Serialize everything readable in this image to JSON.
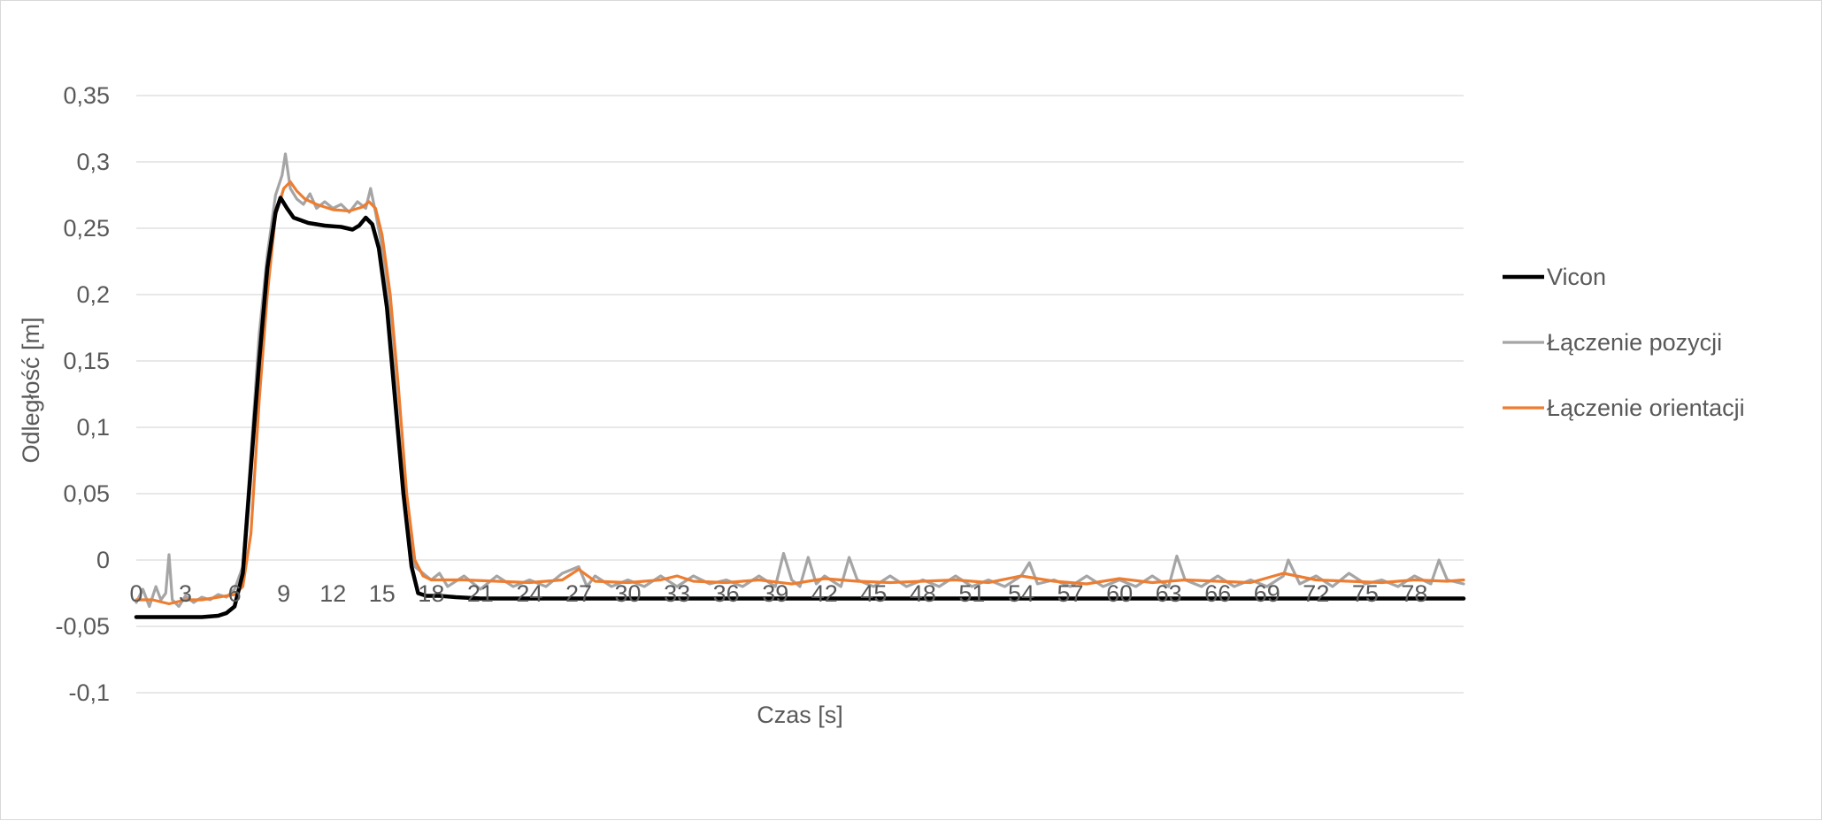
{
  "chart_data": {
    "type": "line",
    "title": "",
    "xlabel": "Czas [s]",
    "ylabel": "Odległość [m]",
    "xlim": [
      0,
      81
    ],
    "ylim": [
      -0.1,
      0.35
    ],
    "x_ticks": [
      "0",
      "3",
      "6",
      "9",
      "12",
      "15",
      "18",
      "21",
      "24",
      "27",
      "30",
      "33",
      "36",
      "39",
      "42",
      "45",
      "48",
      "51",
      "54",
      "57",
      "60",
      "63",
      "66",
      "69",
      "72",
      "75",
      "78"
    ],
    "y_ticks": [
      "-0,1",
      "-0,05",
      "0",
      "0,05",
      "0,1",
      "0,15",
      "0,2",
      "0,25",
      "0,3",
      "0,35"
    ],
    "grid": true,
    "legend_position": "right",
    "series": [
      {
        "name": "Vicon",
        "color": "#000000",
        "points": [
          [
            0,
            -0.043
          ],
          [
            1,
            -0.043
          ],
          [
            2,
            -0.043
          ],
          [
            3,
            -0.043
          ],
          [
            4,
            -0.043
          ],
          [
            5,
            -0.042
          ],
          [
            5.5,
            -0.04
          ],
          [
            6,
            -0.035
          ],
          [
            6.5,
            -0.01
          ],
          [
            7,
            0.07
          ],
          [
            7.5,
            0.15
          ],
          [
            8,
            0.22
          ],
          [
            8.5,
            0.262
          ],
          [
            8.8,
            0.273
          ],
          [
            9.2,
            0.265
          ],
          [
            9.6,
            0.258
          ],
          [
            10.5,
            0.254
          ],
          [
            11.5,
            0.252
          ],
          [
            12.5,
            0.251
          ],
          [
            13.2,
            0.249
          ],
          [
            13.6,
            0.252
          ],
          [
            14,
            0.258
          ],
          [
            14.4,
            0.253
          ],
          [
            14.8,
            0.235
          ],
          [
            15.3,
            0.19
          ],
          [
            15.8,
            0.12
          ],
          [
            16.3,
            0.05
          ],
          [
            16.8,
            -0.005
          ],
          [
            17.2,
            -0.025
          ],
          [
            17.7,
            -0.027
          ],
          [
            18.5,
            -0.027
          ],
          [
            19.5,
            -0.028
          ],
          [
            21,
            -0.029
          ],
          [
            30,
            -0.029
          ],
          [
            40,
            -0.029
          ],
          [
            50,
            -0.029
          ],
          [
            60,
            -0.029
          ],
          [
            70,
            -0.029
          ],
          [
            81,
            -0.029
          ]
        ]
      },
      {
        "name": "Łączenie pozycji",
        "color": "#a5a5a5",
        "points": [
          [
            0,
            -0.032
          ],
          [
            0.4,
            -0.022
          ],
          [
            0.8,
            -0.035
          ],
          [
            1.2,
            -0.02
          ],
          [
            1.5,
            -0.03
          ],
          [
            1.8,
            -0.025
          ],
          [
            2,
            0.004
          ],
          [
            2.2,
            -0.03
          ],
          [
            2.6,
            -0.035
          ],
          [
            3,
            -0.027
          ],
          [
            3.5,
            -0.032
          ],
          [
            4,
            -0.028
          ],
          [
            4.5,
            -0.03
          ],
          [
            5,
            -0.026
          ],
          [
            5.5,
            -0.028
          ],
          [
            6,
            -0.022
          ],
          [
            6.5,
            -0.005
          ],
          [
            7,
            0.08
          ],
          [
            7.5,
            0.17
          ],
          [
            8,
            0.23
          ],
          [
            8.5,
            0.275
          ],
          [
            8.9,
            0.29
          ],
          [
            9.1,
            0.306
          ],
          [
            9.4,
            0.28
          ],
          [
            9.8,
            0.272
          ],
          [
            10.2,
            0.268
          ],
          [
            10.6,
            0.276
          ],
          [
            11,
            0.265
          ],
          [
            11.5,
            0.27
          ],
          [
            12,
            0.265
          ],
          [
            12.5,
            0.268
          ],
          [
            13,
            0.262
          ],
          [
            13.5,
            0.27
          ],
          [
            14,
            0.265
          ],
          [
            14.3,
            0.28
          ],
          [
            14.6,
            0.262
          ],
          [
            15,
            0.235
          ],
          [
            15.5,
            0.18
          ],
          [
            16,
            0.1
          ],
          [
            16.5,
            0.03
          ],
          [
            17,
            -0.005
          ],
          [
            17.5,
            -0.01
          ],
          [
            18,
            -0.015
          ],
          [
            18.5,
            -0.01
          ],
          [
            19,
            -0.02
          ],
          [
            20,
            -0.012
          ],
          [
            21,
            -0.022
          ],
          [
            22,
            -0.012
          ],
          [
            23,
            -0.02
          ],
          [
            24,
            -0.015
          ],
          [
            25,
            -0.02
          ],
          [
            26,
            -0.01
          ],
          [
            27,
            -0.005
          ],
          [
            27.5,
            -0.02
          ],
          [
            28,
            -0.012
          ],
          [
            29,
            -0.02
          ],
          [
            30,
            -0.015
          ],
          [
            31,
            -0.02
          ],
          [
            32,
            -0.012
          ],
          [
            33,
            -0.02
          ],
          [
            34,
            -0.012
          ],
          [
            35,
            -0.018
          ],
          [
            36,
            -0.015
          ],
          [
            37,
            -0.02
          ],
          [
            38,
            -0.012
          ],
          [
            39,
            -0.02
          ],
          [
            39.5,
            0.005
          ],
          [
            40,
            -0.015
          ],
          [
            40.5,
            -0.02
          ],
          [
            41,
            0.002
          ],
          [
            41.5,
            -0.018
          ],
          [
            42,
            -0.012
          ],
          [
            43,
            -0.02
          ],
          [
            43.5,
            0.002
          ],
          [
            44,
            -0.015
          ],
          [
            45,
            -0.02
          ],
          [
            46,
            -0.012
          ],
          [
            47,
            -0.02
          ],
          [
            48,
            -0.015
          ],
          [
            49,
            -0.02
          ],
          [
            50,
            -0.012
          ],
          [
            51,
            -0.02
          ],
          [
            52,
            -0.015
          ],
          [
            53,
            -0.02
          ],
          [
            54,
            -0.012
          ],
          [
            54.5,
            -0.002
          ],
          [
            55,
            -0.018
          ],
          [
            56,
            -0.015
          ],
          [
            57,
            -0.02
          ],
          [
            58,
            -0.012
          ],
          [
            59,
            -0.02
          ],
          [
            60,
            -0.015
          ],
          [
            61,
            -0.02
          ],
          [
            62,
            -0.012
          ],
          [
            63,
            -0.02
          ],
          [
            63.5,
            0.003
          ],
          [
            64,
            -0.015
          ],
          [
            65,
            -0.02
          ],
          [
            66,
            -0.012
          ],
          [
            67,
            -0.02
          ],
          [
            68,
            -0.015
          ],
          [
            69,
            -0.02
          ],
          [
            70,
            -0.012
          ],
          [
            70.3,
            0.0
          ],
          [
            71,
            -0.018
          ],
          [
            72,
            -0.012
          ],
          [
            73,
            -0.02
          ],
          [
            74,
            -0.01
          ],
          [
            75,
            -0.018
          ],
          [
            76,
            -0.015
          ],
          [
            77,
            -0.02
          ],
          [
            78,
            -0.012
          ],
          [
            79,
            -0.018
          ],
          [
            79.5,
            0.0
          ],
          [
            80,
            -0.015
          ],
          [
            81,
            -0.018
          ]
        ]
      },
      {
        "name": "Łączenie orientacji",
        "color": "#ed7d31",
        "points": [
          [
            0,
            -0.03
          ],
          [
            1,
            -0.03
          ],
          [
            2,
            -0.033
          ],
          [
            3,
            -0.03
          ],
          [
            4,
            -0.03
          ],
          [
            5,
            -0.028
          ],
          [
            6,
            -0.026
          ],
          [
            6.5,
            -0.02
          ],
          [
            7,
            0.02
          ],
          [
            7.5,
            0.12
          ],
          [
            8,
            0.2
          ],
          [
            8.5,
            0.26
          ],
          [
            9,
            0.28
          ],
          [
            9.4,
            0.285
          ],
          [
            9.8,
            0.278
          ],
          [
            10.3,
            0.272
          ],
          [
            11,
            0.268
          ],
          [
            12,
            0.264
          ],
          [
            13,
            0.263
          ],
          [
            13.8,
            0.266
          ],
          [
            14.2,
            0.27
          ],
          [
            14.6,
            0.265
          ],
          [
            15,
            0.245
          ],
          [
            15.5,
            0.2
          ],
          [
            16,
            0.13
          ],
          [
            16.5,
            0.05
          ],
          [
            17,
            0.0
          ],
          [
            17.5,
            -0.012
          ],
          [
            18,
            -0.015
          ],
          [
            20,
            -0.015
          ],
          [
            22,
            -0.016
          ],
          [
            24,
            -0.017
          ],
          [
            26,
            -0.015
          ],
          [
            27,
            -0.007
          ],
          [
            28,
            -0.016
          ],
          [
            30,
            -0.017
          ],
          [
            32,
            -0.015
          ],
          [
            33,
            -0.012
          ],
          [
            34,
            -0.016
          ],
          [
            36,
            -0.017
          ],
          [
            38,
            -0.015
          ],
          [
            40,
            -0.018
          ],
          [
            42,
            -0.014
          ],
          [
            44,
            -0.016
          ],
          [
            46,
            -0.017
          ],
          [
            48,
            -0.016
          ],
          [
            50,
            -0.015
          ],
          [
            52,
            -0.017
          ],
          [
            54,
            -0.012
          ],
          [
            56,
            -0.016
          ],
          [
            58,
            -0.018
          ],
          [
            60,
            -0.014
          ],
          [
            62,
            -0.017
          ],
          [
            64,
            -0.015
          ],
          [
            66,
            -0.016
          ],
          [
            68,
            -0.017
          ],
          [
            70,
            -0.01
          ],
          [
            72,
            -0.015
          ],
          [
            74,
            -0.016
          ],
          [
            76,
            -0.017
          ],
          [
            78,
            -0.015
          ],
          [
            80,
            -0.016
          ],
          [
            81,
            -0.015
          ]
        ]
      }
    ]
  }
}
